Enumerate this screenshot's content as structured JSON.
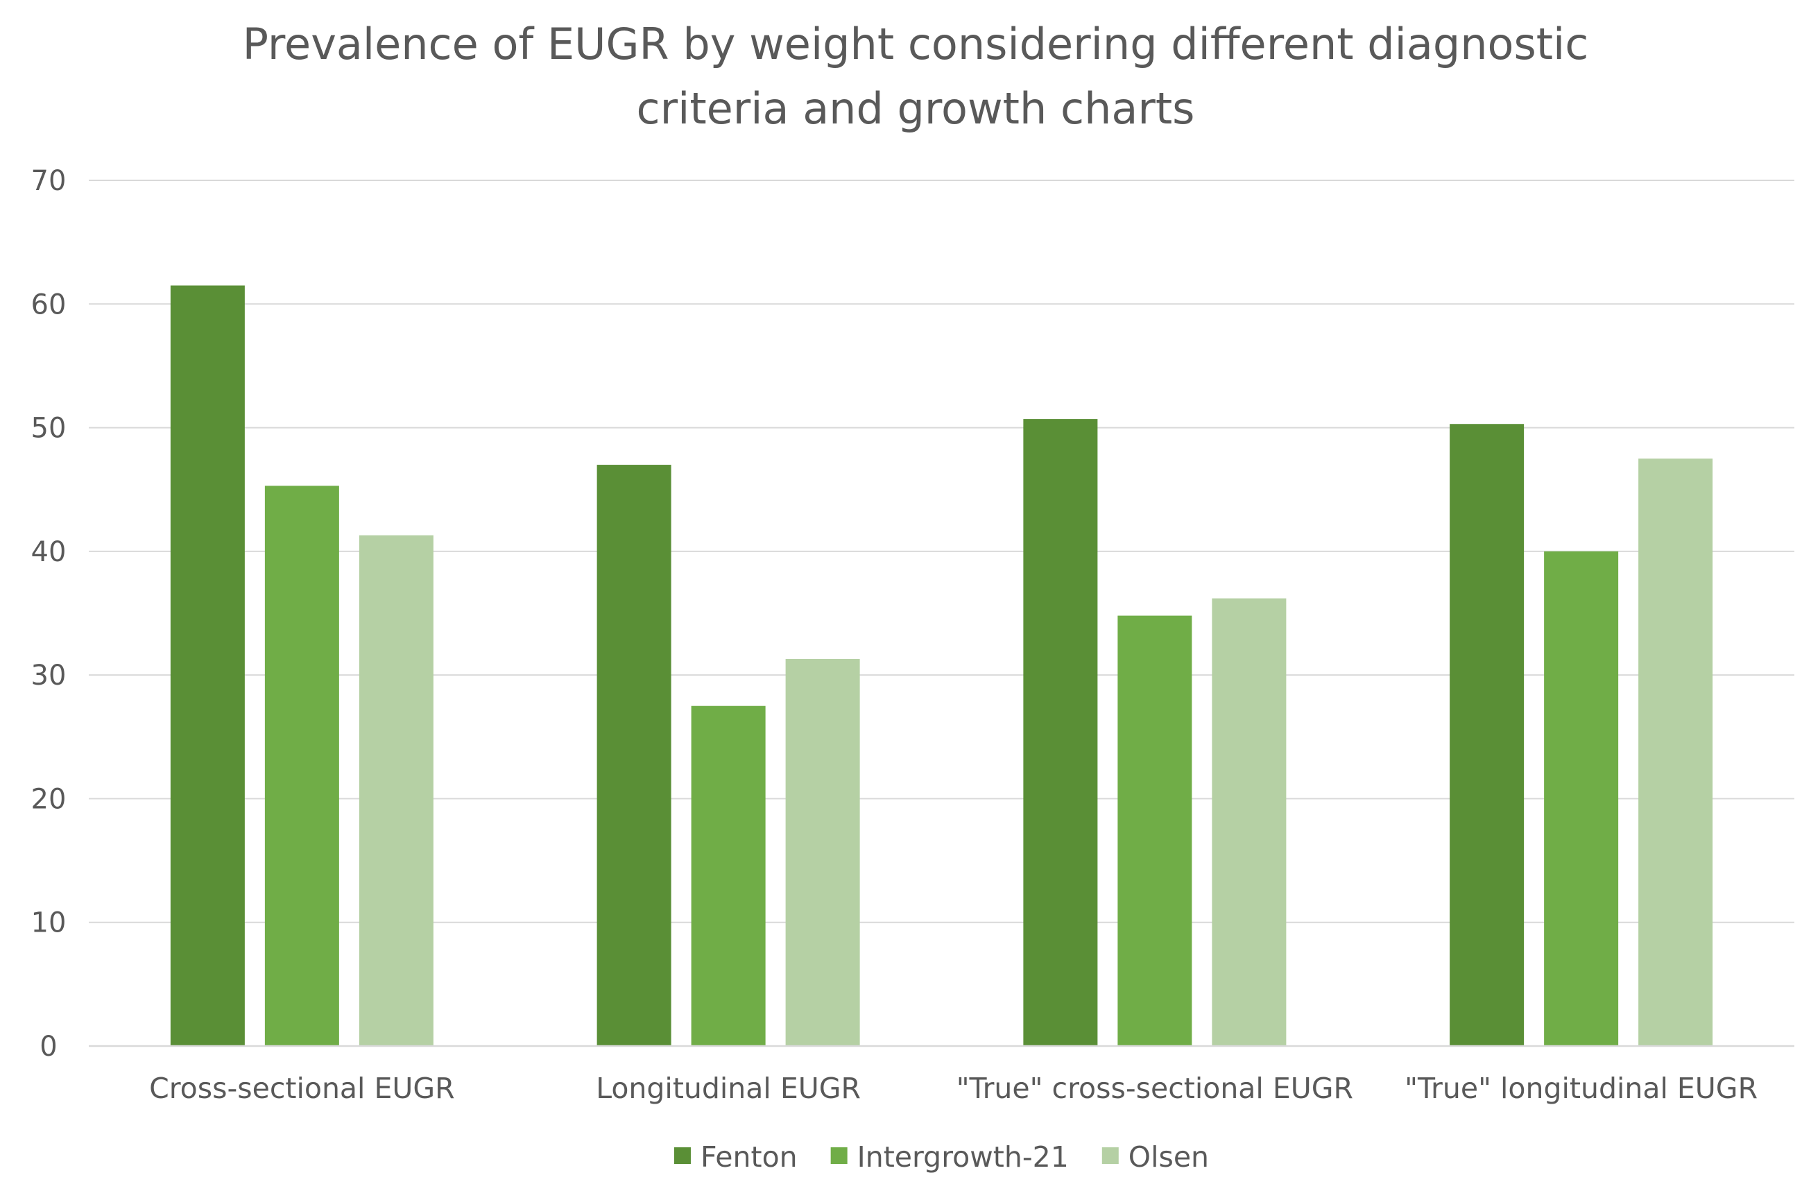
{
  "chart_data": {
    "type": "bar",
    "title_lines": [
      "Prevalence of EUGR by weight considering different diagnostic",
      "criteria and growth charts"
    ],
    "categories": [
      "Cross-sectional EUGR",
      "Longitudinal EUGR",
      "\"True\" cross-sectional EUGR",
      "\"True\" longitudinal EUGR"
    ],
    "series": [
      {
        "name": "Fenton",
        "color": "#5a8f36",
        "values": [
          61.5,
          47,
          50.7,
          50.3
        ]
      },
      {
        "name": "Intergrowth-21",
        "color": "#70ad47",
        "values": [
          45.3,
          27.5,
          34.8,
          40
        ]
      },
      {
        "name": "Olsen",
        "color": "#b5d0a4",
        "values": [
          41.3,
          31.3,
          36.2,
          47.5
        ]
      }
    ],
    "yticks": [
      "0",
      "10",
      "20",
      "30",
      "40",
      "50",
      "60",
      "70"
    ],
    "ylim": [
      0,
      70
    ],
    "grid": true,
    "legend_position": "bottom",
    "xlabel": "",
    "ylabel": ""
  }
}
